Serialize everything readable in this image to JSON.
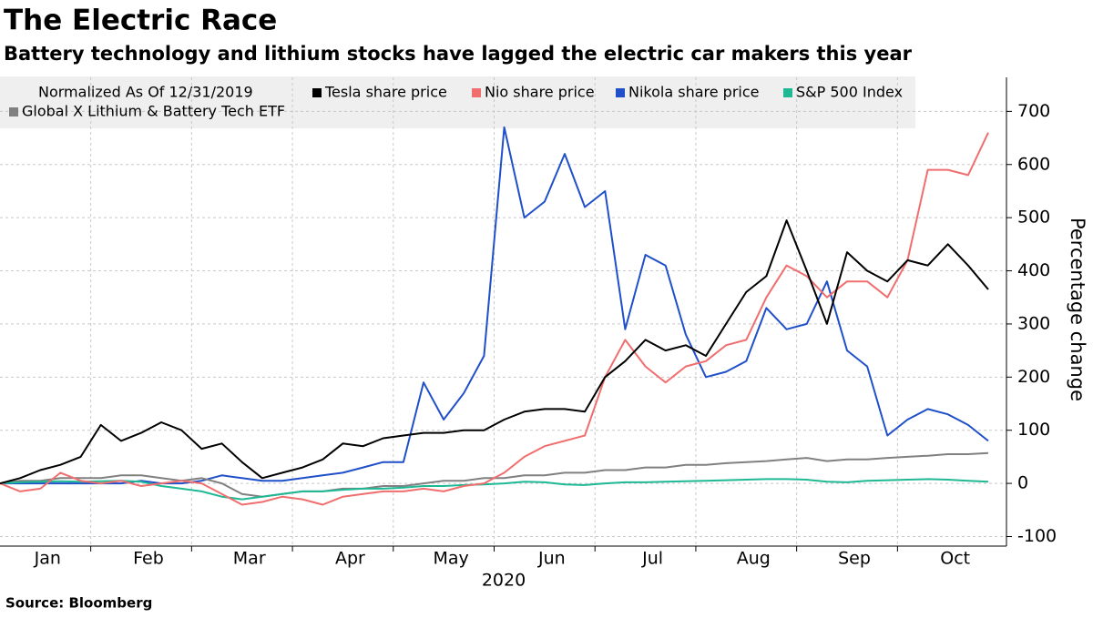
{
  "chart_data": {
    "type": "line",
    "title": "The Electric Race",
    "subtitle": "Battery technology and lithium stocks have lagged the electric car makers this year",
    "legend_title": "Normalized As Of 12/31/2019",
    "x_label": "2020",
    "y_label": "Percentage change",
    "source": "Source: Bloomberg",
    "categories": [
      null,
      null,
      "Jan",
      null,
      null,
      null,
      null,
      "Feb",
      null,
      null,
      null,
      null,
      "Mar",
      null,
      null,
      null,
      null,
      "Apr",
      null,
      null,
      null,
      null,
      "May",
      null,
      null,
      null,
      null,
      "Jun",
      null,
      null,
      null,
      null,
      "Jul",
      null,
      null,
      null,
      null,
      "Aug",
      null,
      null,
      null,
      null,
      "Sep",
      null,
      null,
      null,
      null,
      "Oct",
      null,
      null
    ],
    "series": [
      {
        "name": "Nikola share price",
        "color": "#1f4fc9",
        "values": [
          0,
          0,
          0,
          0,
          0,
          0,
          0,
          5,
          0,
          0,
          5,
          15,
          10,
          5,
          5,
          10,
          15,
          20,
          30,
          40,
          40,
          190,
          120,
          170,
          240,
          670,
          500,
          530,
          620,
          520,
          550,
          290,
          430,
          410,
          280,
          200,
          210,
          230,
          330,
          290,
          300,
          380,
          250,
          220,
          90,
          120,
          140,
          130,
          110,
          80
        ]
      },
      {
        "name": "Global X Lithium & Battery Tech ETF",
        "color": "#808080",
        "values": [
          0,
          5,
          5,
          10,
          10,
          10,
          15,
          15,
          10,
          5,
          10,
          0,
          -20,
          -25,
          -20,
          -15,
          -15,
          -10,
          -10,
          -5,
          -5,
          0,
          5,
          5,
          10,
          10,
          15,
          15,
          20,
          20,
          25,
          25,
          30,
          30,
          35,
          35,
          38,
          40,
          42,
          45,
          48,
          42,
          45,
          45,
          48,
          50,
          52,
          55,
          55,
          57
        ]
      },
      {
        "name": "S&P 500 Index",
        "color": "#1fb894",
        "values": [
          0,
          2,
          3,
          4,
          3,
          4,
          5,
          3,
          -5,
          -10,
          -15,
          -25,
          -30,
          -25,
          -20,
          -15,
          -15,
          -12,
          -10,
          -10,
          -8,
          -5,
          -5,
          -3,
          -2,
          0,
          3,
          2,
          -2,
          -3,
          0,
          2,
          2,
          3,
          4,
          5,
          6,
          7,
          8,
          8,
          7,
          3,
          2,
          5,
          6,
          7,
          8,
          7,
          5,
          3
        ]
      },
      {
        "name": "Nio share price",
        "color": "#f06e6e",
        "values": [
          0,
          -15,
          -10,
          20,
          5,
          0,
          5,
          -5,
          0,
          5,
          0,
          -20,
          -40,
          -35,
          -25,
          -30,
          -40,
          -25,
          -20,
          -15,
          -15,
          -10,
          -15,
          -5,
          0,
          20,
          50,
          70,
          80,
          90,
          200,
          270,
          220,
          190,
          220,
          230,
          260,
          270,
          350,
          410,
          390,
          350,
          380,
          380,
          350,
          420,
          590,
          590,
          580,
          660
        ]
      },
      {
        "name": "Tesla share price",
        "color": "#000000",
        "values": [
          0,
          10,
          25,
          35,
          50,
          110,
          80,
          95,
          115,
          100,
          65,
          75,
          40,
          10,
          20,
          30,
          45,
          75,
          70,
          85,
          90,
          95,
          95,
          100,
          100,
          120,
          135,
          140,
          140,
          135,
          200,
          230,
          270,
          250,
          260,
          240,
          300,
          360,
          390,
          495,
          400,
          300,
          435,
          400,
          380,
          420,
          410,
          450,
          410,
          365
        ]
      }
    ],
    "ylim": [
      -118,
      764
    ],
    "yticks": [
      -100,
      0,
      100,
      200,
      300,
      400,
      500,
      600,
      700
    ],
    "grid": true
  }
}
